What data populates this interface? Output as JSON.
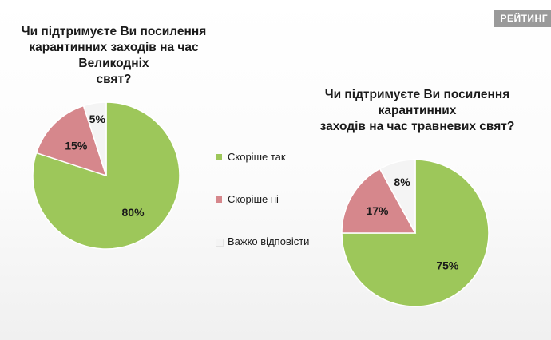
{
  "watermark": "РЕЙТИНГ",
  "colors": {
    "yes": "#9dc75a",
    "no": "#d6878c",
    "hard": "#f4f4f4",
    "edge": "#ffffff"
  },
  "legend": [
    {
      "label": "Скоріше  так",
      "color": "#9dc75a"
    },
    {
      "label": "Скоріше  ні",
      "color": "#d6878c"
    },
    {
      "label": "Важко відповісти",
      "color": "#f4f4f4"
    }
  ],
  "chart_data": [
    {
      "type": "pie",
      "title": "Чи підтримуєте Ви посилення\nкарантинних заходів на час Великодніх\nсвят?",
      "categories": [
        "Скоріше  так",
        "Скоріше  ні",
        "Важко відповісти"
      ],
      "values": [
        80,
        15,
        5
      ],
      "labels": [
        "80%",
        "15%",
        "5%"
      ]
    },
    {
      "type": "pie",
      "title": "Чи підтримуєте Ви посилення карантинних\nзаходів на час травневих свят?",
      "categories": [
        "Скоріше  так",
        "Скоріше  ні",
        "Важко відповісти"
      ],
      "values": [
        75,
        17,
        8
      ],
      "labels": [
        "75%",
        "17%",
        "8%"
      ]
    }
  ]
}
